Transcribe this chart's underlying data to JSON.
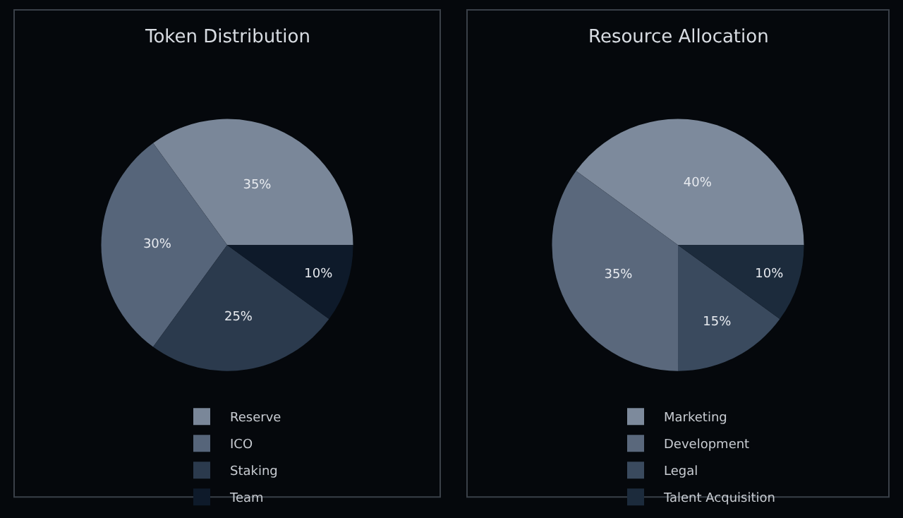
{
  "chart_data": [
    {
      "type": "pie",
      "title": "Token Distribution",
      "categories": [
        "Reserve",
        "ICO",
        "Staking",
        "Team"
      ],
      "values": [
        35,
        30,
        25,
        10
      ],
      "colors": [
        "#7a8799",
        "#56657a",
        "#2b3a4d",
        "#0e1a2a"
      ],
      "value_labels": [
        "35%",
        "30%",
        "25%",
        "10%"
      ],
      "legend": "bottom"
    },
    {
      "type": "pie",
      "title": "Resource Allocation",
      "categories": [
        "Marketing",
        "Development",
        "Legal",
        "Talent Acquisition"
      ],
      "values": [
        40,
        35,
        15,
        10
      ],
      "colors": [
        "#7d8a9c",
        "#5a687c",
        "#3a4a5e",
        "#1c2b3c"
      ],
      "value_labels": [
        "40%",
        "35%",
        "15%",
        "10%"
      ],
      "legend": "bottom"
    }
  ]
}
